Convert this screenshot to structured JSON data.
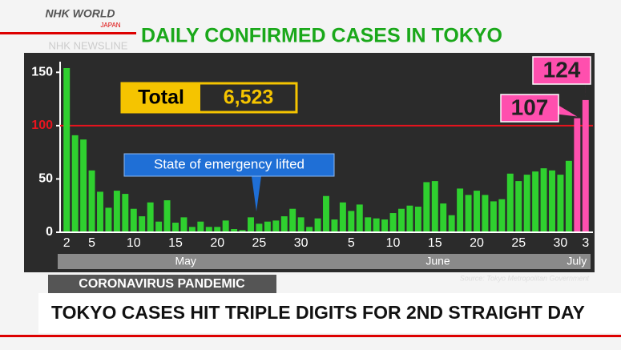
{
  "header": {
    "logo": "NHK WORLD",
    "logo_sub": "JAPAN",
    "program": "NHK NEWSLINE"
  },
  "chart_data": {
    "type": "bar",
    "title": "DAILY CONFIRMED CASES IN TOKYO",
    "categories": [
      "2",
      null,
      null,
      "5",
      null,
      null,
      null,
      null,
      "10",
      null,
      null,
      null,
      null,
      "15",
      null,
      null,
      null,
      null,
      "20",
      null,
      null,
      null,
      null,
      "25",
      null,
      null,
      null,
      null,
      "30",
      null,
      null,
      null,
      null,
      null,
      "5",
      null,
      null,
      null,
      null,
      "10",
      null,
      null,
      null,
      null,
      "15",
      null,
      null,
      null,
      null,
      "20",
      null,
      null,
      null,
      null,
      "25",
      null,
      null,
      null,
      null,
      "30",
      null,
      null,
      "3"
    ],
    "values": [
      154,
      91,
      87,
      58,
      38,
      23,
      39,
      36,
      22,
      15,
      28,
      10,
      30,
      9,
      14,
      5,
      10,
      5,
      5,
      11,
      3,
      2,
      14,
      8,
      10,
      11,
      15,
      22,
      14,
      5,
      13,
      34,
      12,
      28,
      20,
      26,
      14,
      13,
      12,
      18,
      22,
      25,
      24,
      47,
      48,
      27,
      16,
      41,
      35,
      39,
      35,
      29,
      31,
      55,
      48,
      54,
      57,
      60,
      58,
      54,
      67,
      107,
      124
    ],
    "colors": [
      "#2fd02f",
      "#2fd02f",
      "#2fd02f",
      "#2fd02f",
      "#2fd02f",
      "#2fd02f",
      "#2fd02f",
      "#2fd02f",
      "#2fd02f",
      "#2fd02f",
      "#2fd02f",
      "#2fd02f",
      "#2fd02f",
      "#2fd02f",
      "#2fd02f",
      "#2fd02f",
      "#2fd02f",
      "#2fd02f",
      "#2fd02f",
      "#2fd02f",
      "#2fd02f",
      "#2fd02f",
      "#2fd02f",
      "#2fd02f",
      "#2fd02f",
      "#2fd02f",
      "#2fd02f",
      "#2fd02f",
      "#2fd02f",
      "#2fd02f",
      "#2fd02f",
      "#2fd02f",
      "#2fd02f",
      "#2fd02f",
      "#2fd02f",
      "#2fd02f",
      "#2fd02f",
      "#2fd02f",
      "#2fd02f",
      "#2fd02f",
      "#2fd02f",
      "#2fd02f",
      "#2fd02f",
      "#2fd02f",
      "#2fd02f",
      "#2fd02f",
      "#2fd02f",
      "#2fd02f",
      "#2fd02f",
      "#2fd02f",
      "#2fd02f",
      "#2fd02f",
      "#2fd02f",
      "#2fd02f",
      "#2fd02f",
      "#2fd02f",
      "#2fd02f",
      "#2fd02f",
      "#2fd02f",
      "#2fd02f",
      "#2fd02f",
      "#ff4fae",
      "#ff4fae"
    ],
    "months": [
      "May",
      "June",
      "July"
    ],
    "ylim": [
      0,
      160
    ],
    "yticks": [
      0,
      50,
      100,
      150
    ],
    "ref_line": {
      "value": 100,
      "color": "#e8141e"
    },
    "total_label": "Total",
    "total_value": "6,523",
    "annotation": "State of emergency lifted"
  },
  "banner": {
    "tag": "CORONAVIRUS PANDEMIC",
    "source": "Source: Tokyo Metropolitan Government",
    "headline": "TOKYO CASES HIT TRIPLE DIGITS FOR 2ND STRAIGHT DAY"
  }
}
